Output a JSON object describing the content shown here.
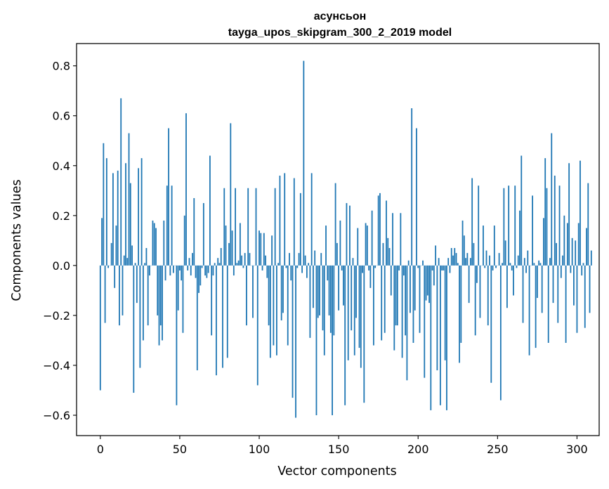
{
  "chart_data": {
    "type": "bar",
    "title": "асунсьон",
    "subtitle": "tayga_upos_skipgram_300_2_2019 model",
    "xlabel": "Vector components",
    "ylabel": "Components values",
    "xlim": [
      -14.95,
      313.95
    ],
    "ylim": [
      -0.6816,
      0.8892
    ],
    "xticks": [
      0,
      50,
      100,
      150,
      200,
      250,
      300
    ],
    "yticks": [
      -0.6,
      -0.4,
      -0.2,
      0.0,
      0.2,
      0.4,
      0.6,
      0.8
    ],
    "ytick_labels": [
      "−0.6",
      "−0.4",
      "−0.2",
      "0.0",
      "0.2",
      "0.4",
      "0.6",
      "0.8"
    ],
    "bar_color": "#1f77b4",
    "grid": false,
    "legend": "none",
    "x_start": 0,
    "values": [
      -0.5,
      0.19,
      0.49,
      -0.23,
      0.43,
      -0.01,
      0.0,
      0.09,
      0.37,
      -0.09,
      0.16,
      0.38,
      -0.24,
      0.67,
      -0.2,
      0.04,
      0.41,
      0.03,
      0.53,
      0.33,
      0.08,
      -0.51,
      0.01,
      -0.15,
      0.39,
      -0.41,
      0.43,
      -0.3,
      0.01,
      0.07,
      -0.24,
      -0.04,
      0.0,
      0.18,
      0.17,
      0.15,
      -0.2,
      -0.32,
      -0.24,
      -0.3,
      0.18,
      -0.06,
      0.32,
      0.55,
      -0.04,
      0.32,
      -0.03,
      0.0,
      -0.56,
      -0.18,
      -0.02,
      -0.06,
      -0.27,
      0.2,
      0.61,
      -0.02,
      0.03,
      -0.04,
      0.05,
      0.27,
      -0.05,
      -0.42,
      -0.11,
      -0.08,
      -0.01,
      0.25,
      -0.04,
      -0.05,
      -0.03,
      0.44,
      -0.28,
      -0.04,
      0.01,
      -0.44,
      0.03,
      0.01,
      0.07,
      -0.41,
      0.31,
      0.16,
      -0.37,
      0.09,
      0.57,
      0.14,
      -0.04,
      0.31,
      0.01,
      0.02,
      0.17,
      0.04,
      -0.01,
      0.05,
      -0.24,
      0.31,
      0.05,
      0.0,
      -0.21,
      0.0,
      0.31,
      -0.48,
      0.14,
      0.13,
      -0.02,
      0.13,
      0.04,
      -0.05,
      -0.24,
      -0.37,
      0.12,
      -0.32,
      0.31,
      -0.36,
      0.01,
      0.36,
      -0.22,
      -0.19,
      0.37,
      -0.01,
      -0.32,
      0.05,
      -0.06,
      -0.53,
      0.35,
      -0.61,
      -0.01,
      0.05,
      0.29,
      -0.03,
      0.82,
      0.04,
      -0.05,
      0.01,
      -0.29,
      0.37,
      -0.17,
      0.06,
      -0.6,
      -0.21,
      -0.2,
      0.05,
      -0.26,
      -0.36,
      0.16,
      -0.06,
      -0.2,
      -0.27,
      -0.6,
      -0.28,
      0.33,
      0.09,
      -0.18,
      0.18,
      -0.02,
      -0.16,
      -0.56,
      0.25,
      -0.38,
      0.24,
      -0.26,
      0.03,
      -0.36,
      -0.21,
      0.15,
      -0.33,
      -0.41,
      -0.03,
      -0.55,
      0.17,
      0.16,
      -0.02,
      -0.09,
      0.22,
      -0.32,
      -0.01,
      0.0,
      0.28,
      0.29,
      -0.3,
      0.09,
      -0.27,
      0.26,
      0.11,
      0.07,
      -0.12,
      0.21,
      -0.34,
      -0.24,
      -0.24,
      -0.02,
      0.21,
      -0.37,
      -0.04,
      -0.28,
      -0.46,
      0.02,
      -0.19,
      0.63,
      -0.31,
      -0.18,
      0.55,
      -0.01,
      -0.27,
      0.0,
      0.02,
      -0.45,
      -0.14,
      -0.12,
      -0.15,
      -0.58,
      -0.02,
      -0.08,
      0.08,
      -0.42,
      0.03,
      -0.56,
      -0.02,
      -0.02,
      -0.38,
      -0.58,
      0.03,
      -0.03,
      0.07,
      0.04,
      0.07,
      0.05,
      0.01,
      -0.39,
      -0.31,
      0.18,
      0.12,
      0.03,
      0.05,
      -0.15,
      0.03,
      0.35,
      0.09,
      -0.28,
      -0.07,
      0.32,
      -0.21,
      0.0,
      0.16,
      -0.01,
      0.06,
      -0.24,
      0.04,
      -0.47,
      -0.02,
      0.16,
      -0.01,
      0.0,
      0.05,
      -0.54,
      0.01,
      0.31,
      0.1,
      -0.17,
      0.32,
      0.01,
      -0.02,
      -0.12,
      0.32,
      -0.01,
      0.04,
      0.22,
      0.44,
      -0.23,
      0.03,
      -0.03,
      0.06,
      -0.36,
      0.0,
      0.28,
      0.01,
      -0.33,
      -0.13,
      0.02,
      0.01,
      -0.19,
      0.19,
      0.43,
      0.31,
      -0.31,
      0.03,
      0.53,
      -0.15,
      0.36,
      0.09,
      -0.23,
      0.32,
      -0.05,
      0.04,
      0.2,
      -0.31,
      0.17,
      0.41,
      -0.03,
      0.11,
      -0.16,
      0.1,
      -0.27,
      0.17,
      0.42,
      -0.04,
      0.01,
      -0.25,
      0.15,
      0.33,
      -0.19,
      0.06
    ]
  }
}
